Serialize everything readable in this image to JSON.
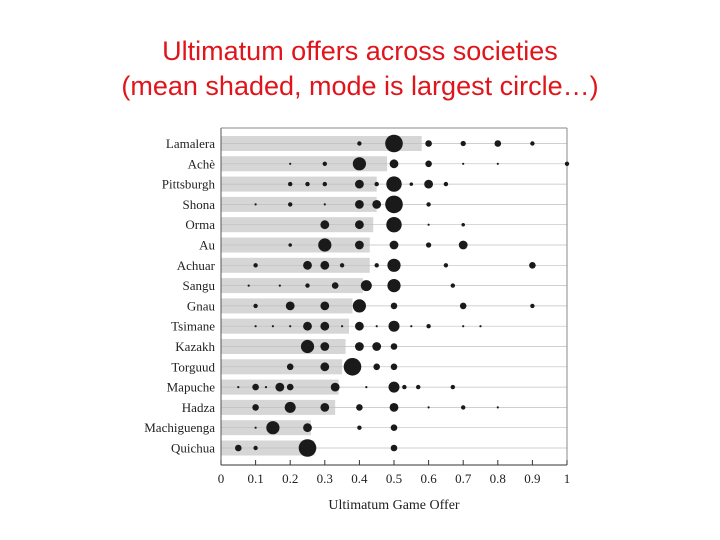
{
  "title": {
    "line1": "Ultimatum offers across societies",
    "line2": "(mean shaded, mode is largest circle…)"
  },
  "colors": {
    "title": "#e0141a",
    "bar": "#d6d6d6",
    "dot": "#1a1a1a",
    "grid": "#bfbfbf"
  },
  "chart_data": {
    "type": "scatter",
    "xlabel": "Ultimatum Game Offer",
    "xlim": [
      0,
      1
    ],
    "xticks": [
      "0",
      "0.1",
      "0.2",
      "0.3",
      "0.4",
      "0.5",
      "0.6",
      "0.7",
      "0.8",
      "0.9",
      "1"
    ],
    "societies": [
      {
        "name": "Lamalera",
        "mean": 0.58,
        "points": [
          [
            0.4,
            1
          ],
          [
            0.5,
            4
          ],
          [
            0.6,
            1.5
          ],
          [
            0.7,
            1.2
          ],
          [
            0.8,
            1.5
          ],
          [
            0.9,
            1
          ]
        ]
      },
      {
        "name": "Achè",
        "mean": 0.48,
        "points": [
          [
            0.2,
            0.5
          ],
          [
            0.3,
            1
          ],
          [
            0.4,
            3
          ],
          [
            0.5,
            2
          ],
          [
            0.6,
            1.5
          ],
          [
            0.7,
            0.5
          ],
          [
            0.8,
            0.5
          ],
          [
            1.0,
            1
          ]
        ]
      },
      {
        "name": "Pittsburgh",
        "mean": 0.45,
        "points": [
          [
            0.2,
            1
          ],
          [
            0.25,
            1
          ],
          [
            0.3,
            1
          ],
          [
            0.4,
            2
          ],
          [
            0.45,
            1
          ],
          [
            0.5,
            3.5
          ],
          [
            0.55,
            0.8
          ],
          [
            0.6,
            2
          ],
          [
            0.65,
            1
          ]
        ]
      },
      {
        "name": "Shona",
        "mean": 0.45,
        "points": [
          [
            0.1,
            0.5
          ],
          [
            0.2,
            1
          ],
          [
            0.3,
            0.5
          ],
          [
            0.4,
            2
          ],
          [
            0.45,
            2
          ],
          [
            0.5,
            4
          ],
          [
            0.6,
            1
          ]
        ]
      },
      {
        "name": "Orma",
        "mean": 0.44,
        "points": [
          [
            0.3,
            2
          ],
          [
            0.4,
            2
          ],
          [
            0.5,
            3.5
          ],
          [
            0.6,
            0.5
          ],
          [
            0.7,
            0.8
          ]
        ]
      },
      {
        "name": "Au",
        "mean": 0.43,
        "points": [
          [
            0.2,
            0.8
          ],
          [
            0.3,
            3
          ],
          [
            0.4,
            2
          ],
          [
            0.5,
            2
          ],
          [
            0.6,
            1.2
          ],
          [
            0.7,
            2
          ]
        ]
      },
      {
        "name": "Achuar",
        "mean": 0.43,
        "points": [
          [
            0.1,
            1
          ],
          [
            0.25,
            2
          ],
          [
            0.3,
            2
          ],
          [
            0.35,
            1
          ],
          [
            0.45,
            1
          ],
          [
            0.5,
            3
          ],
          [
            0.65,
            1
          ],
          [
            0.9,
            1.5
          ]
        ]
      },
      {
        "name": "Sangu",
        "mean": 0.41,
        "points": [
          [
            0.08,
            0.5
          ],
          [
            0.17,
            0.5
          ],
          [
            0.25,
            1
          ],
          [
            0.33,
            1.5
          ],
          [
            0.42,
            2.5
          ],
          [
            0.5,
            3
          ],
          [
            0.67,
            1
          ]
        ]
      },
      {
        "name": "Gnau",
        "mean": 0.38,
        "points": [
          [
            0.1,
            1
          ],
          [
            0.2,
            2
          ],
          [
            0.3,
            2
          ],
          [
            0.4,
            3
          ],
          [
            0.5,
            1.5
          ],
          [
            0.7,
            1.5
          ],
          [
            0.9,
            1
          ]
        ]
      },
      {
        "name": "Tsimane",
        "mean": 0.37,
        "points": [
          [
            0.1,
            0.5
          ],
          [
            0.15,
            0.5
          ],
          [
            0.2,
            0.5
          ],
          [
            0.25,
            2
          ],
          [
            0.3,
            2
          ],
          [
            0.35,
            0.5
          ],
          [
            0.4,
            2
          ],
          [
            0.45,
            0.5
          ],
          [
            0.5,
            2.5
          ],
          [
            0.55,
            0.5
          ],
          [
            0.6,
            1
          ],
          [
            0.7,
            0.5
          ],
          [
            0.75,
            0.5
          ]
        ]
      },
      {
        "name": "Kazakh",
        "mean": 0.36,
        "points": [
          [
            0.25,
            3
          ],
          [
            0.3,
            2
          ],
          [
            0.4,
            2
          ],
          [
            0.45,
            2
          ],
          [
            0.5,
            1.5
          ]
        ]
      },
      {
        "name": "Torguud",
        "mean": 0.35,
        "points": [
          [
            0.2,
            1.5
          ],
          [
            0.3,
            2
          ],
          [
            0.38,
            4
          ],
          [
            0.45,
            1.5
          ],
          [
            0.5,
            1.5
          ]
        ]
      },
      {
        "name": "Mapuche",
        "mean": 0.34,
        "points": [
          [
            0.05,
            0.5
          ],
          [
            0.1,
            1.5
          ],
          [
            0.13,
            0.5
          ],
          [
            0.17,
            2
          ],
          [
            0.2,
            1.5
          ],
          [
            0.33,
            2
          ],
          [
            0.42,
            0.5
          ],
          [
            0.5,
            2.5
          ],
          [
            0.53,
            1
          ],
          [
            0.57,
            1
          ],
          [
            0.67,
            1
          ]
        ]
      },
      {
        "name": "Hadza",
        "mean": 0.33,
        "points": [
          [
            0.1,
            1.5
          ],
          [
            0.2,
            2.5
          ],
          [
            0.3,
            2
          ],
          [
            0.4,
            1.5
          ],
          [
            0.5,
            2
          ],
          [
            0.6,
            0.5
          ],
          [
            0.7,
            1
          ],
          [
            0.8,
            0.5
          ]
        ]
      },
      {
        "name": "Machiguenga",
        "mean": 0.26,
        "points": [
          [
            0.1,
            0.5
          ],
          [
            0.15,
            3
          ],
          [
            0.25,
            2
          ],
          [
            0.4,
            1
          ],
          [
            0.5,
            1.5
          ]
        ]
      },
      {
        "name": "Quichua",
        "mean": 0.27,
        "points": [
          [
            0.05,
            1.5
          ],
          [
            0.1,
            1
          ],
          [
            0.25,
            4
          ],
          [
            0.5,
            1.5
          ]
        ]
      }
    ]
  }
}
